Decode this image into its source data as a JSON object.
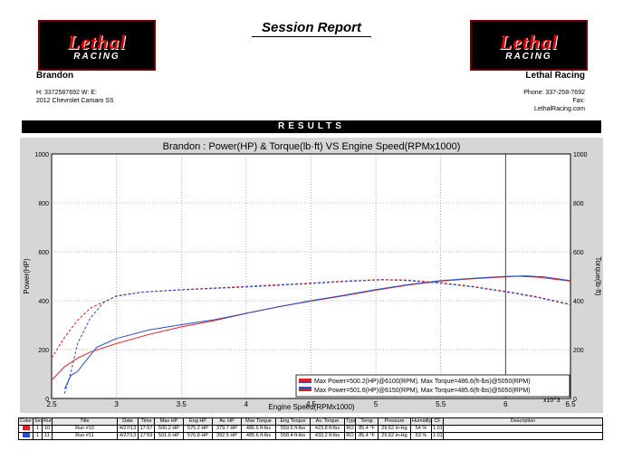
{
  "header": {
    "title": "Session Report",
    "logo_text": "Lethal",
    "logo_sub": "RACING",
    "customer_name": "Brandon",
    "shop_name": "Lethal Racing",
    "customer_phone_line": "H:  3372587692    W:        E:",
    "customer_vehicle": "2012 Chevrolet Camaro SS",
    "shop_phone": "Phone: 337-258-7692",
    "shop_fax": "Fax:",
    "shop_website": "LethalRacing.com"
  },
  "results_label": "RESULTS",
  "chart_data": {
    "type": "line",
    "title": "Brandon : Power(HP) & Torque(lb·ft) VS Engine Speed(RPMx1000)",
    "xlabel": "Engine Speed(RPMx1000)",
    "ylabel_left": "Power(HP)",
    "ylabel_right": "Torque(lb·ft)",
    "x_multiplier_label": "x10^3",
    "xlim": [
      2.5,
      6.5
    ],
    "ylim": [
      0,
      1000
    ],
    "x_ticks": [
      "2.5",
      "3",
      "3.5",
      "4",
      "4.5",
      "5",
      "5.5",
      "6",
      "6.5"
    ],
    "y_ticks": [
      "0",
      "200",
      "400",
      "600",
      "800",
      "1000"
    ],
    "grid": true,
    "cursor_x": 6,
    "legend": [
      "Max Power=500.2(HP)@6100(RPM), Max Torque=486.6(ft-lbs)@5050(RPM)",
      "Max Power=501.6(HP)@6150(RPM), Max Torque=485.6(ft-lbs)@5050(RPM)"
    ],
    "legend_position": "bottom-right",
    "series": [
      {
        "run": "Run #10",
        "measure": "power",
        "color": "#e02020",
        "dash": false,
        "x": [
          2.5,
          2.6,
          2.7,
          2.8,
          3.0,
          3.25,
          3.5,
          3.75,
          4.0,
          4.25,
          4.5,
          4.75,
          5.0,
          5.25,
          5.5,
          5.75,
          6.0,
          6.1,
          6.25,
          6.5
        ],
        "y": [
          75,
          130,
          165,
          190,
          225,
          262,
          293,
          318,
          348,
          375,
          398,
          420,
          443,
          464,
          480,
          490,
          497,
          500,
          496,
          480
        ]
      },
      {
        "run": "Run #10",
        "measure": "torque",
        "color": "#e02020",
        "dash": true,
        "x": [
          2.5,
          2.6,
          2.7,
          2.8,
          3.0,
          3.2,
          3.5,
          3.75,
          4.0,
          4.25,
          4.5,
          4.75,
          5.05,
          5.25,
          5.5,
          5.75,
          6.0,
          6.25,
          6.5
        ],
        "y": [
          165,
          250,
          320,
          370,
          418,
          435,
          445,
          452,
          458,
          465,
          472,
          480,
          486.6,
          484,
          473,
          458,
          438,
          415,
          385
        ]
      },
      {
        "run": "Run #11",
        "measure": "power",
        "color": "#2a4fc8",
        "dash": false,
        "x": [
          2.6,
          2.65,
          2.7,
          2.75,
          2.85,
          3.0,
          3.25,
          3.5,
          3.75,
          4.0,
          4.25,
          4.5,
          4.75,
          5.0,
          5.25,
          5.5,
          5.75,
          6.0,
          6.15,
          6.3,
          6.5
        ],
        "y": [
          40,
          95,
          110,
          145,
          210,
          245,
          280,
          302,
          322,
          348,
          375,
          400,
          422,
          445,
          466,
          482,
          492,
          499,
          501.6,
          497,
          482
        ]
      },
      {
        "run": "Run #11",
        "measure": "torque",
        "color": "#2a4fc8",
        "dash": true,
        "x": [
          2.6,
          2.65,
          2.7,
          2.8,
          2.9,
          3.0,
          3.2,
          3.5,
          3.75,
          4.0,
          4.25,
          4.5,
          4.75,
          5.05,
          5.25,
          5.5,
          5.75,
          6.0,
          6.25,
          6.5
        ],
        "y": [
          20,
          110,
          225,
          330,
          392,
          420,
          435,
          444,
          450,
          456,
          463,
          470,
          478,
          485.6,
          482,
          471,
          456,
          436,
          413,
          383
        ]
      }
    ]
  },
  "table": {
    "headers": [
      "Color",
      "Sess",
      "Run",
      "Title",
      "Date",
      "Time",
      "Max HP",
      "Eng HP",
      "Av. HP",
      "Max Torque",
      "Eng Torque",
      "Av. Torque",
      "Type",
      "Temp",
      "Pressure",
      "Humidity",
      "CF",
      "Description"
    ],
    "rows": [
      {
        "color": "#e02020",
        "cells": [
          "1",
          "10",
          "Run #10",
          "4/27/13",
          "17:57",
          "500.2 HP",
          "575.2 HP",
          "379.7 HP",
          "486.6 ft-lbs",
          "559.6 ft-lbs",
          "423.8 ft-lbs",
          "RO",
          "85.4 °F",
          "29.62 in-Hg",
          "54 %",
          "1.01",
          ""
        ]
      },
      {
        "color": "#2a4fc8",
        "cells": [
          "1",
          "11",
          "Run #11",
          "4/27/13",
          "17:59",
          "501.6 HP",
          "576.8 HP",
          "392.5 HP",
          "485.6 ft-lbs",
          "558.4 ft-lbs",
          "433.2 ft-lbs",
          "RO",
          "85.4 °F",
          "29.62 in-Hg",
          "53 %",
          "1.01",
          ""
        ]
      }
    ]
  }
}
